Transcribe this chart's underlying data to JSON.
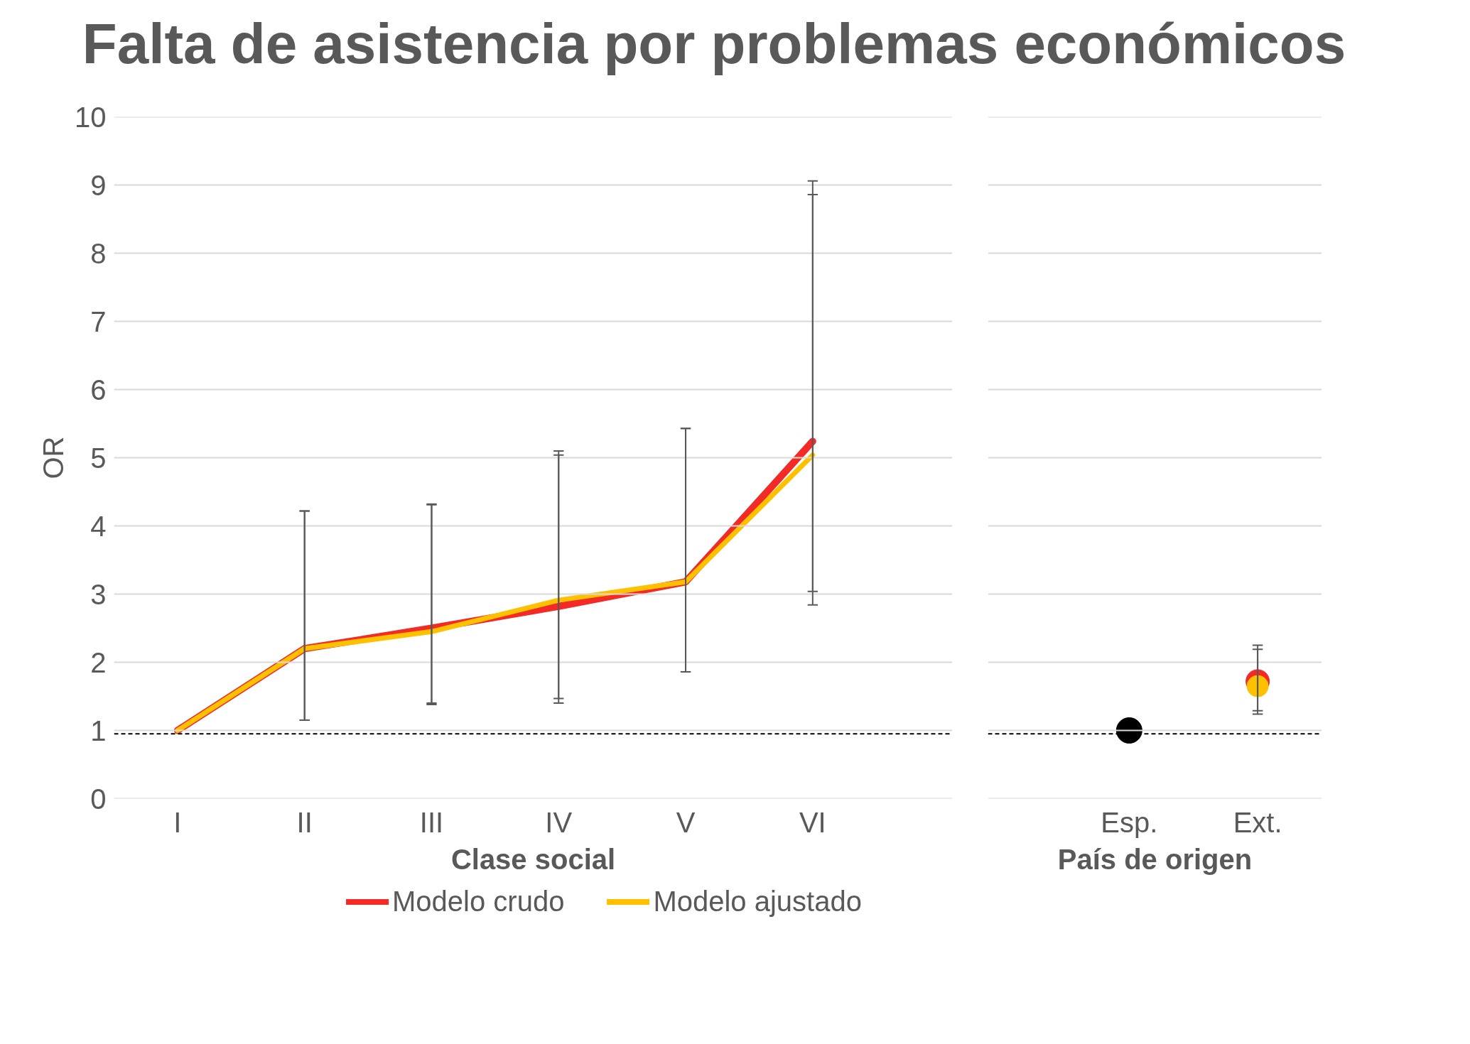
{
  "chart_data": [
    {
      "type": "line",
      "title": "Falta de asistencia por problemas económicos",
      "xlabel": "Clase social",
      "ylabel": "OR",
      "categories": [
        "I",
        "II",
        "III",
        "IV",
        "V",
        "VI"
      ],
      "ylim": [
        0,
        10
      ],
      "yticks": [
        0,
        1,
        2,
        3,
        4,
        5,
        6,
        7,
        8,
        9,
        10
      ],
      "grid": "y",
      "legend": "bottom",
      "marker": "none",
      "line_style": "solid",
      "series": [
        {
          "name": "Modelo crudo",
          "color": "#f42a27",
          "values": [
            1.0,
            2.2,
            2.5,
            2.82,
            3.18,
            5.24
          ],
          "errors": [
            null,
            [
              1.15,
              4.22
            ],
            [
              1.38,
              4.32
            ],
            [
              1.4,
              5.1
            ],
            [
              1.86,
              5.43
            ],
            [
              2.84,
              9.06
            ]
          ]
        },
        {
          "name": "Modelo ajustado",
          "color": "#ffc000",
          "values": [
            1.0,
            2.2,
            2.45,
            2.91,
            3.18,
            5.04
          ],
          "errors": [
            null,
            [
              1.15,
              4.22
            ],
            [
              1.4,
              4.31
            ],
            [
              1.47,
              5.04
            ],
            [
              1.86,
              5.43
            ],
            [
              3.04,
              8.86
            ]
          ]
        }
      ],
      "ref_lines": [
        {
          "axis": "y",
          "value": 0.95,
          "color": "#000000",
          "line_style": "dashed"
        }
      ]
    },
    {
      "type": "scatter",
      "xlabel": "País de origen",
      "categories": [
        "Esp.",
        "Ext."
      ],
      "ylim": [
        0,
        10
      ],
      "yticks": [
        0,
        1,
        2,
        3,
        4,
        5,
        6,
        7,
        8,
        9,
        10
      ],
      "grid": "y",
      "tick_labels": "x",
      "marker": "circle",
      "series": [
        {
          "color": "#000000",
          "values": [
            1.0,
            null
          ]
        },
        {
          "color": "#f42a27",
          "values": [
            null,
            1.72
          ],
          "errors": [
            null,
            [
              1.29,
              2.25
            ]
          ]
        },
        {
          "color": "#ffc000",
          "values": [
            null,
            1.65
          ],
          "errors": [
            null,
            [
              1.24,
              2.19
            ]
          ]
        }
      ],
      "ref_lines": [
        {
          "axis": "y",
          "value": 0.95,
          "color": "#000000",
          "line_style": "dashed"
        }
      ]
    }
  ]
}
